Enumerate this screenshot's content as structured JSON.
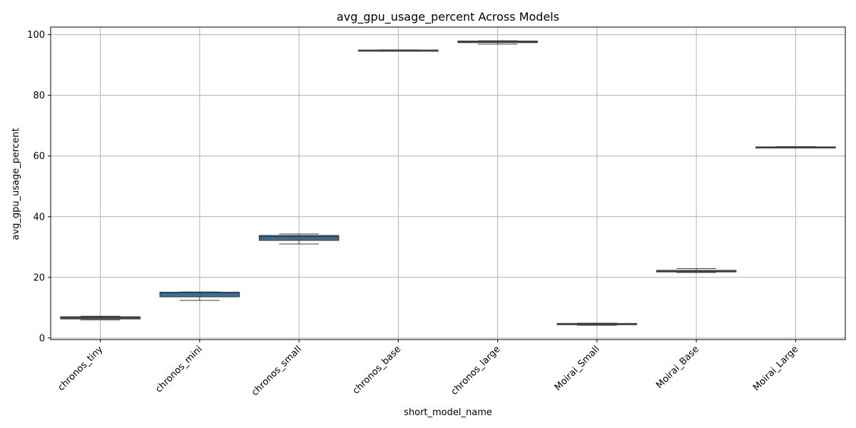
{
  "chart_data": {
    "type": "box",
    "title": "avg_gpu_usage_percent Across Models",
    "xlabel": "short_model_name",
    "ylabel": "avg_gpu_usage_percent",
    "ylim": [
      -0.5,
      102.5
    ],
    "yticks": [
      0,
      20,
      40,
      60,
      80,
      100
    ],
    "grid": true,
    "box_color": "#3274a1",
    "edge_color": "#3f3f3f",
    "categories": [
      "chronos_tiny",
      "chronos_mini",
      "chronos_small",
      "chronos_base",
      "chronos_large",
      "Moirai_Small",
      "Moirai_Base",
      "Moirai_Large"
    ],
    "boxes": [
      {
        "name": "chronos_tiny",
        "min": 6.0,
        "q1": 6.3,
        "median": 6.7,
        "q3": 7.0,
        "max": 7.2
      },
      {
        "name": "chronos_mini",
        "min": 12.4,
        "q1": 13.6,
        "median": 14.9,
        "q3": 15.1,
        "max": 15.2
      },
      {
        "name": "chronos_small",
        "min": 31.0,
        "q1": 32.2,
        "median": 33.4,
        "q3": 33.8,
        "max": 34.3
      },
      {
        "name": "chronos_base",
        "min": 94.7,
        "q1": 94.8,
        "median": 94.9,
        "q3": 94.9,
        "max": 95.0
      },
      {
        "name": "chronos_large",
        "min": 96.9,
        "q1": 97.4,
        "median": 97.7,
        "q3": 97.9,
        "max": 98.0
      },
      {
        "name": "Moirai_Small",
        "min": 4.2,
        "q1": 4.4,
        "median": 4.7,
        "q3": 4.8,
        "max": 4.9
      },
      {
        "name": "Moirai_Base",
        "min": 21.6,
        "q1": 21.8,
        "median": 22.0,
        "q3": 22.3,
        "max": 22.9
      },
      {
        "name": "Moirai_Large",
        "min": 62.7,
        "q1": 62.8,
        "median": 62.9,
        "q3": 63.0,
        "max": 63.1
      }
    ]
  }
}
